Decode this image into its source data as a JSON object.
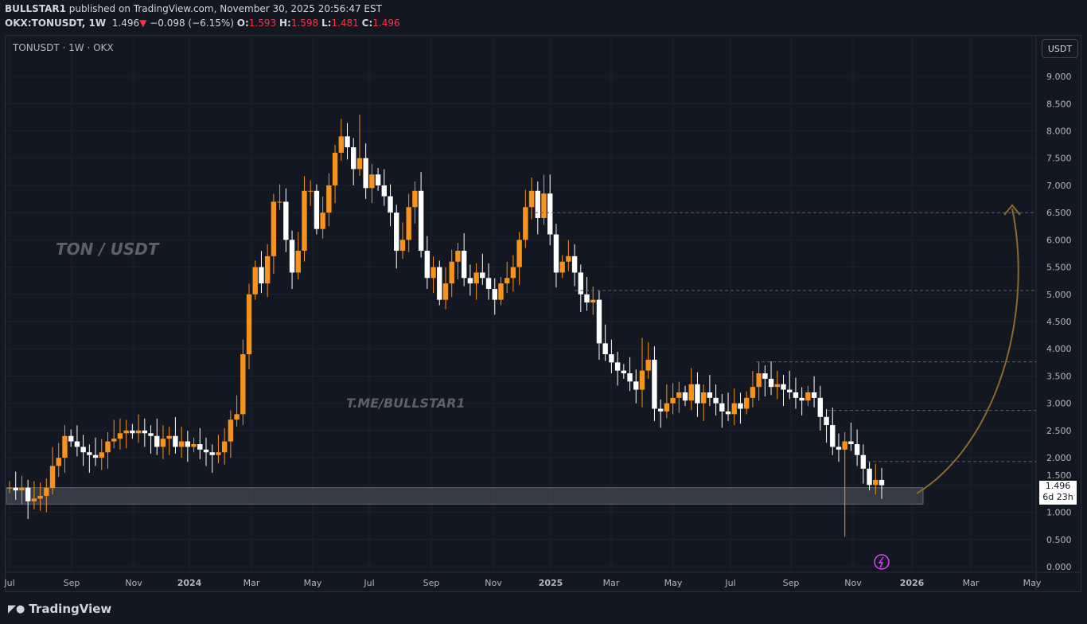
{
  "header": {
    "author": "BULLSTAR1",
    "published": "published on TradingView.com, November 30, 2025 20:56:47 EST",
    "symbol": "OKX:TONUSDT, 1W",
    "last": "1.496",
    "change": "−0.098 (−6.15%)",
    "o_label": "O:",
    "o": "1.593",
    "h_label": "H:",
    "h": "1.598",
    "l_label": "L:",
    "l": "1.481",
    "c_label": "C:",
    "c": "1.496"
  },
  "legend": "TONUSDT · 1W · OKX",
  "currency_button": "USDT",
  "last_price_label": {
    "price": "1.496",
    "countdown": "6d 23h"
  },
  "brand": "TradingView",
  "colors": {
    "up": "#f7931a",
    "down": "#ffffff",
    "bg": "#131722",
    "arrow": "#8b6a2e"
  },
  "chart_data": {
    "type": "candlestick",
    "title": "TONUSDT · 1W · OKX",
    "annotations": [
      "TON / USDT",
      "T.ME/BULLSTAR1"
    ],
    "ylim": [
      0,
      9.5
    ],
    "y_ticks": [
      "9.000",
      "8.500",
      "8.000",
      "7.500",
      "7.000",
      "6.500",
      "6.000",
      "5.500",
      "5.000",
      "4.500",
      "4.000",
      "3.500",
      "3.000",
      "2.500",
      "2.000",
      "1.500",
      "1.000",
      "0.500",
      "0.000"
    ],
    "x_ticks": [
      "Jul",
      "Sep",
      "Nov",
      "2024",
      "Mar",
      "May",
      "Jul",
      "Sep",
      "Nov",
      "2025",
      "Mar",
      "May",
      "Jul",
      "Sep",
      "Nov",
      "2026",
      "Mar",
      "May"
    ],
    "first_open": 1.45,
    "closes": [
      1.45,
      1.4,
      1.45,
      1.2,
      1.25,
      1.3,
      1.45,
      1.85,
      2.0,
      2.4,
      2.3,
      2.2,
      2.1,
      2.05,
      2.0,
      2.1,
      2.3,
      2.35,
      2.45,
      2.5,
      2.45,
      2.5,
      2.45,
      2.4,
      2.2,
      2.35,
      2.4,
      2.2,
      2.3,
      2.2,
      2.25,
      2.15,
      2.1,
      2.05,
      2.1,
      2.3,
      2.7,
      2.8,
      3.9,
      5.0,
      5.5,
      5.2,
      5.7,
      6.7,
      6.7,
      6.0,
      5.4,
      5.8,
      6.9,
      6.9,
      6.2,
      6.5,
      7.0,
      7.6,
      7.9,
      7.7,
      7.3,
      7.5,
      6.95,
      7.2,
      7.0,
      6.8,
      6.5,
      5.8,
      6.0,
      6.6,
      6.9,
      5.8,
      5.3,
      5.5,
      4.9,
      5.2,
      5.6,
      5.8,
      5.3,
      5.2,
      5.4,
      5.3,
      5.1,
      4.9,
      5.2,
      5.3,
      5.5,
      6.0,
      6.6,
      6.9,
      6.4,
      6.85,
      6.1,
      5.4,
      5.6,
      5.7,
      5.4,
      5.0,
      4.85,
      4.9,
      4.1,
      3.9,
      3.75,
      3.6,
      3.55,
      3.4,
      3.25,
      3.6,
      3.8,
      2.9,
      2.85,
      3.0,
      3.1,
      3.2,
      3.05,
      3.35,
      3.0,
      3.2,
      3.1,
      3.0,
      2.85,
      2.8,
      3.0,
      2.9,
      3.1,
      3.3,
      3.55,
      3.45,
      3.3,
      3.35,
      3.25,
      3.2,
      3.1,
      3.05,
      3.2,
      3.1,
      2.75,
      2.6,
      2.2,
      2.15,
      2.3,
      2.25,
      2.05,
      1.8,
      1.5,
      1.593,
      1.496
    ],
    "notable_wicks": [
      {
        "index": 57,
        "high": 8.3
      },
      {
        "index": 88,
        "high": 7.2
      },
      {
        "index": 136,
        "low": 0.55
      },
      {
        "index": 103,
        "high": 4.2
      }
    ],
    "horizontal_levels": [
      6.5,
      5.07,
      3.76,
      2.87,
      1.93
    ],
    "support_zone": [
      1.15,
      1.45
    ]
  }
}
